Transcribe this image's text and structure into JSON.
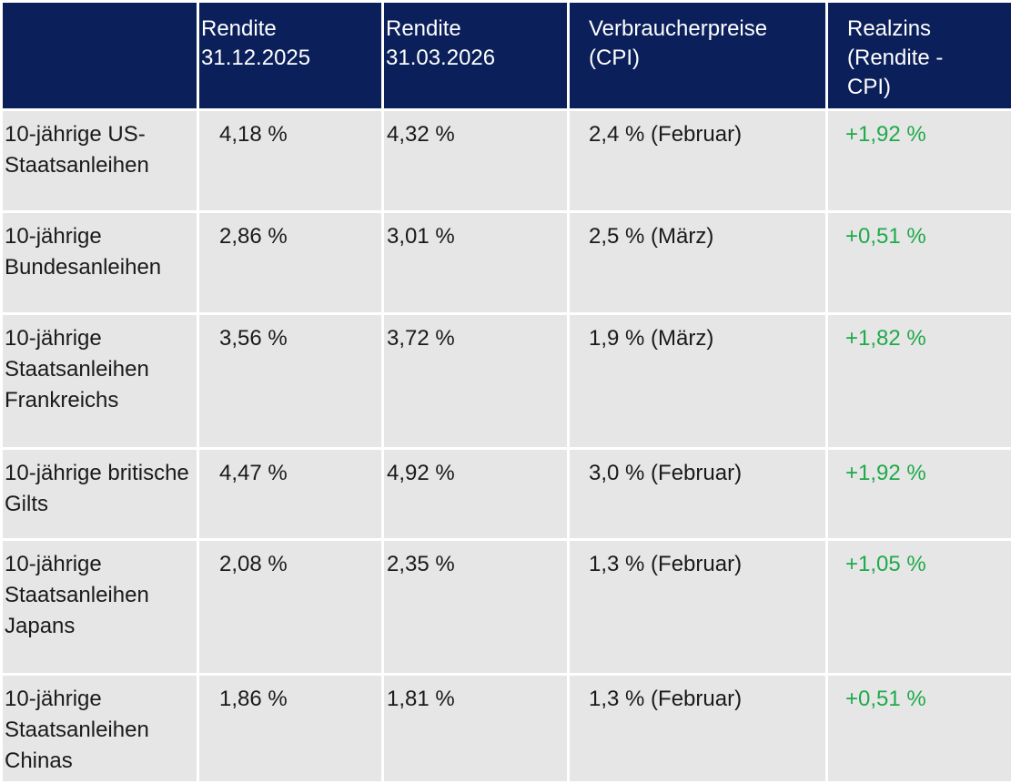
{
  "table": {
    "header": [
      "",
      "Rendite\n31.12.2025",
      "Rendite\n31.03.2026",
      "Verbraucherpreise\n(CPI)",
      "Realzins\n(Rendite -\nCPI)"
    ],
    "rows": [
      [
        "10-jährige US-Staatsanleihen",
        "4,18 %",
        "4,32 %",
        "2,4 % (Februar)",
        "+1,92 %"
      ],
      [
        "10-jährige Bundesanleihen",
        "2,86 %",
        "3,01 %",
        "2,5 % (März)",
        "+0,51 %"
      ],
      [
        "10-jährige Staatsanleihen Frankreichs",
        "3,56 %",
        "3,72 %",
        "1,9 % (März)",
        "+1,82 %"
      ],
      [
        "10-jährige britische Gilts",
        "4,47 %",
        "4,92 %",
        "3,0 % (Februar)",
        "+1,92 %"
      ],
      [
        "10-jährige Staatsanleihen Japans",
        "2,08 %",
        "2,35 %",
        "1,3 % (Februar)",
        "+1,05 %"
      ],
      [
        "10-jährige Staatsanleihen Chinas",
        "1,86 %",
        "1,81 %",
        "1,3 % (Februar)",
        "+0,51 %"
      ]
    ]
  }
}
